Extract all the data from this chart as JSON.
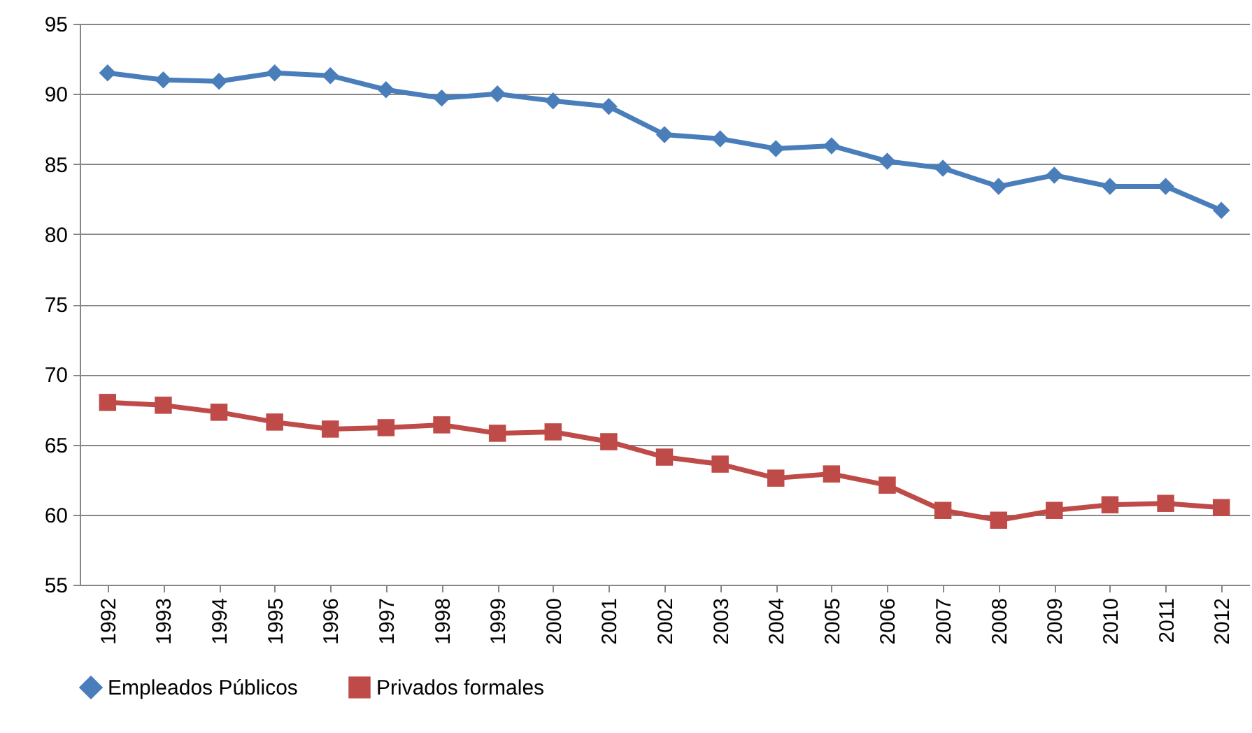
{
  "chart_data": {
    "type": "line",
    "categories": [
      "1992",
      "1993",
      "1994",
      "1995",
      "1996",
      "1997",
      "1998",
      "1999",
      "2000",
      "2001",
      "2002",
      "2003",
      "2004",
      "2005",
      "2006",
      "2007",
      "2008",
      "2009",
      "2010",
      "2011",
      "2012"
    ],
    "series": [
      {
        "name": "Empleados Públicos",
        "color": "#4a7ebb",
        "marker": "diamond",
        "values": [
          91.5,
          91.0,
          90.9,
          91.5,
          91.3,
          90.3,
          89.7,
          90.0,
          89.5,
          89.1,
          87.1,
          86.8,
          86.1,
          86.3,
          85.2,
          84.7,
          83.4,
          84.2,
          83.4,
          83.4,
          81.7
        ]
      },
      {
        "name": "Privados formales",
        "color": "#be4b48",
        "marker": "square",
        "values": [
          68.0,
          67.8,
          67.3,
          66.6,
          66.1,
          66.2,
          66.4,
          65.8,
          65.9,
          65.2,
          64.1,
          63.6,
          62.6,
          62.9,
          62.1,
          60.3,
          59.6,
          60.3,
          60.7,
          60.8,
          60.5
        ]
      }
    ],
    "ylim": [
      55,
      95
    ],
    "yticks": [
      55,
      60,
      65,
      70,
      75,
      80,
      85,
      90,
      95
    ],
    "grid": "y",
    "legend": "bottom",
    "line_style": "solid"
  }
}
